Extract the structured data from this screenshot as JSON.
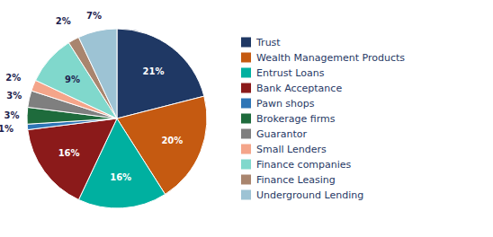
{
  "chart_data": {
    "type": "pie",
    "categories": [
      "Trust",
      "Wealth Management Products",
      "Entrust Loans",
      "Bank Acceptance",
      "Pawn shops",
      "Brokerage firms",
      "Guarantor",
      "Small Lenders",
      "Finance companies",
      "Finance Leasing",
      "Underground Lending"
    ],
    "values": [
      21,
      20,
      16,
      16,
      1,
      3,
      3,
      2,
      9,
      2,
      7
    ],
    "value_labels": [
      "21%",
      "20%",
      "16%",
      "16%",
      "1%",
      "3%",
      "3%",
      "2%",
      "9%",
      "2%",
      "7%"
    ],
    "colors": [
      "#1F3864",
      "#C55A11",
      "#00B0A0",
      "#8B1A1A",
      "#2E75B6",
      "#1E6B3C",
      "#7F7F7F",
      "#F4A58A",
      "#80D8CC",
      "#A9856E",
      "#9DC3D4"
    ],
    "data_labels": true,
    "legend": "right"
  }
}
